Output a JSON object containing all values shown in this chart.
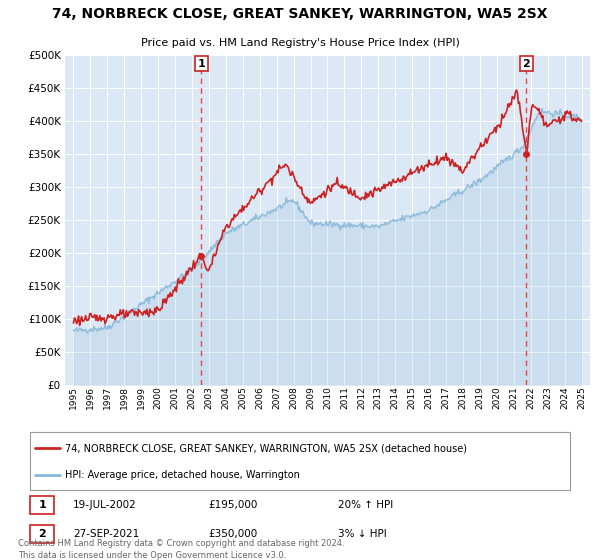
{
  "title": "74, NORBRECK CLOSE, GREAT SANKEY, WARRINGTON, WA5 2SX",
  "subtitle": "Price paid vs. HM Land Registry's House Price Index (HPI)",
  "red_label": "74, NORBRECK CLOSE, GREAT SANKEY, WARRINGTON, WA5 2SX (detached house)",
  "blue_label": "HPI: Average price, detached house, Warrington",
  "marker1_date_num": 2002.54,
  "marker1_value": 195000,
  "marker1_label": "1",
  "marker1_date_str": "19-JUL-2002",
  "marker1_price": "£195,000",
  "marker1_hpi": "20% ↑ HPI",
  "marker2_date_num": 2021.74,
  "marker2_value": 350000,
  "marker2_label": "2",
  "marker2_date_str": "27-SEP-2021",
  "marker2_price": "£350,000",
  "marker2_hpi": "3% ↓ HPI",
  "ylim": [
    0,
    500000
  ],
  "xlim_start": 1994.5,
  "xlim_end": 2025.5,
  "plot_bg_color": "#dce8f5",
  "red_color": "#cc2222",
  "blue_color": "#88b8d8",
  "vline_color": "#ee3333",
  "footer": "Contains HM Land Registry data © Crown copyright and database right 2024.\nThis data is licensed under the Open Government Licence v3.0."
}
